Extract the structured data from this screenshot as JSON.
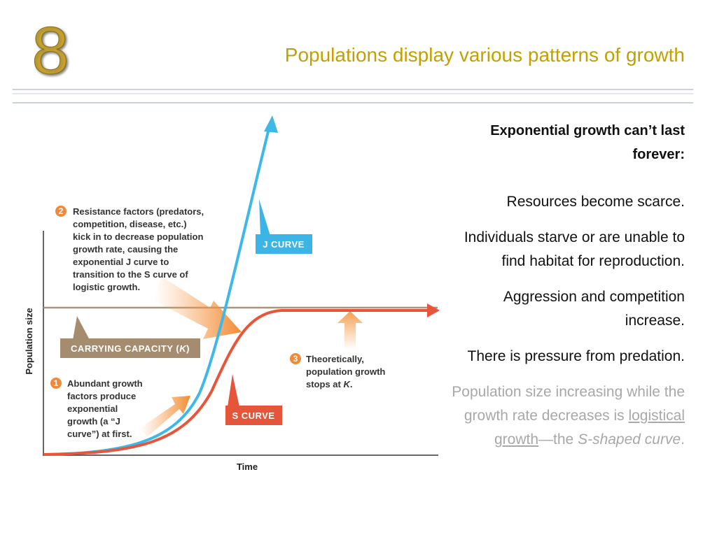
{
  "slide_number": "8",
  "title": "Populations display various patterns of growth",
  "figure": {
    "y_axis_label": "Population size",
    "x_axis_label": "Time",
    "j_curve_label": "J CURVE",
    "s_curve_label": "S CURVE",
    "carrying_capacity_label": [
      "CARRYING CAPACITY (",
      "K",
      ")"
    ],
    "notes": [
      {
        "number": "1",
        "lines": [
          "Abundant growth",
          "factors produce",
          "exponential",
          "growth (a “J",
          "curve”) at first."
        ]
      },
      {
        "number": "2",
        "lines": [
          "Resistance factors (predators,",
          "competition, disease, etc.)",
          "kick in to decrease population",
          "growth rate, causing the",
          "exponential J curve to",
          "transition to the S curve of",
          "logistic growth."
        ]
      },
      {
        "number": "3",
        "lines": [
          "Theoretically,",
          "population growth",
          [
            "stops at ",
            "K",
            "."
          ]
        ]
      }
    ]
  },
  "text": {
    "heading": "Exponential growth can’t last forever:",
    "bullets": [
      "Resources become scarce.",
      "Individuals starve or are unable to find habitat for reproduction.",
      "Aggression and competition increase.",
      "There is pressure from predation."
    ],
    "note": [
      "Population size increasing while the growth rate decreases is ",
      "logistical growth",
      "—the ",
      "S-shaped curve",
      "."
    ]
  }
}
